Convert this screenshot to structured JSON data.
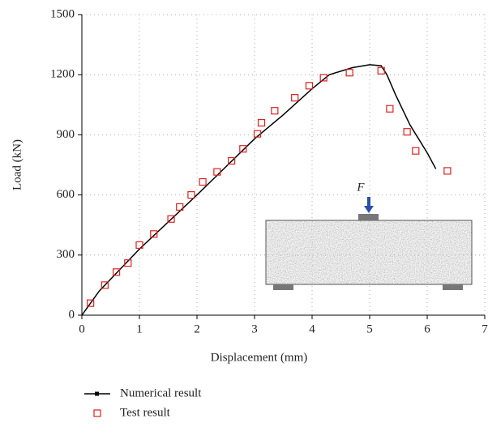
{
  "chart_data": {
    "type": "line",
    "xlabel": "Displacement (mm)",
    "ylabel": "Load (kN)",
    "xlim": [
      0,
      7
    ],
    "ylim": [
      0,
      1500
    ],
    "xticks": [
      0,
      1,
      2,
      3,
      4,
      5,
      6,
      7
    ],
    "yticks": [
      0,
      300,
      600,
      900,
      1200,
      1500
    ],
    "grid": true,
    "annotation": "F",
    "series": [
      {
        "name": "Numerical result",
        "color": "#000000",
        "kind": "line",
        "x": [
          0,
          0.3,
          1,
          2,
          3,
          3.5,
          4,
          4.3,
          4.7,
          5,
          5.2,
          5.3,
          5.45,
          5.7,
          6,
          6.15
        ],
        "values": [
          0,
          120,
          330,
          600,
          880,
          1000,
          1130,
          1200,
          1235,
          1250,
          1245,
          1200,
          1100,
          950,
          810,
          730
        ]
      },
      {
        "name": "Test result",
        "color": "#e02020",
        "kind": "scatter",
        "x": [
          0.15,
          0.4,
          0.6,
          0.8,
          1,
          1.25,
          1.55,
          1.7,
          1.9,
          2.1,
          2.35,
          2.6,
          2.8,
          3.05,
          3.12,
          3.35,
          3.7,
          3.95,
          4.2,
          4.65,
          5.2,
          5.35,
          5.65,
          5.8,
          6.35
        ],
        "values": [
          60,
          150,
          215,
          260,
          350,
          405,
          480,
          540,
          600,
          665,
          715,
          770,
          830,
          905,
          960,
          1020,
          1085,
          1145,
          1185,
          1210,
          1220,
          1030,
          915,
          820,
          720
        ]
      }
    ]
  }
}
